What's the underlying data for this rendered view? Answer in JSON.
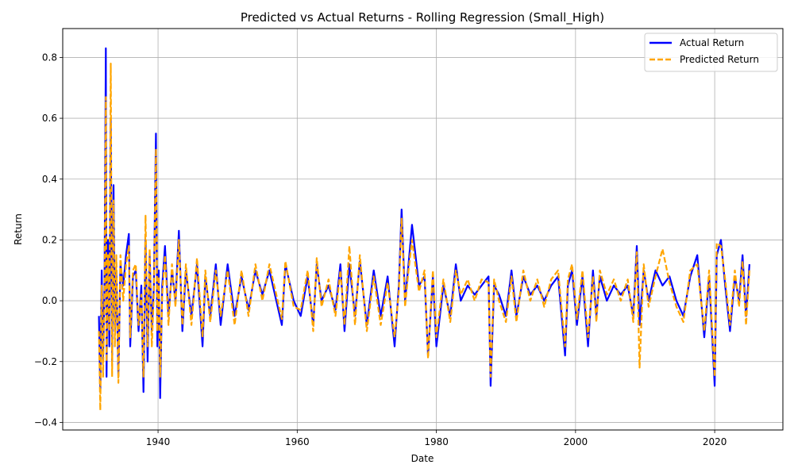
{
  "chart_data": {
    "type": "line",
    "title": "Predicted vs Actual Returns - Rolling Regression (Small_High)",
    "xlabel": "Date",
    "ylabel": "Return",
    "xlim": [
      1926.3,
      2029.8
    ],
    "ylim": [
      -0.425,
      0.895
    ],
    "x_ticks": [
      1940,
      1960,
      1980,
      2000,
      2020
    ],
    "y_ticks": [
      -0.4,
      -0.2,
      0.0,
      0.2,
      0.4,
      0.6,
      0.8
    ],
    "y_tick_labels": [
      "−0.4",
      "−0.2",
      "0.0",
      "0.2",
      "0.4",
      "0.6",
      "0.8"
    ],
    "grid": true,
    "legend_position": "top-right",
    "series": [
      {
        "name": "Actual Return",
        "color": "#0000ff",
        "style": "solid",
        "x": [
          1931.5,
          1931.7,
          1931.9,
          1932.1,
          1932.3,
          1932.5,
          1932.6,
          1932.8,
          1933.0,
          1933.2,
          1933.4,
          1933.6,
          1933.8,
          1934.0,
          1934.3,
          1934.6,
          1935.0,
          1935.4,
          1935.8,
          1936.0,
          1936.4,
          1936.8,
          1937.2,
          1937.6,
          1937.9,
          1938.2,
          1938.5,
          1938.8,
          1939.1,
          1939.4,
          1939.7,
          1939.9,
          1940.1,
          1940.3,
          1940.6,
          1941.0,
          1941.5,
          1942.0,
          1942.5,
          1943.0,
          1943.5,
          1944.0,
          1944.8,
          1945.6,
          1946.4,
          1946.8,
          1947.5,
          1948.3,
          1949.0,
          1950.0,
          1951.0,
          1952.0,
          1953.0,
          1954.0,
          1955.0,
          1956.0,
          1957.0,
          1957.8,
          1958.3,
          1959.5,
          1960.5,
          1961.5,
          1962.3,
          1962.8,
          1963.5,
          1964.5,
          1965.5,
          1966.2,
          1966.8,
          1967.5,
          1968.3,
          1969.0,
          1970.0,
          1971.0,
          1972.0,
          1973.0,
          1974.0,
          1974.6,
          1975.0,
          1975.5,
          1976.0,
          1976.5,
          1977.5,
          1978.3,
          1978.8,
          1979.5,
          1980.0,
          1981.0,
          1982.0,
          1982.8,
          1983.5,
          1984.5,
          1985.5,
          1986.5,
          1987.5,
          1987.8,
          1988.3,
          1989.0,
          1990.0,
          1990.8,
          1991.5,
          1992.5,
          1993.5,
          1994.5,
          1995.5,
          1996.5,
          1997.5,
          1998.5,
          1998.9,
          1999.5,
          2000.2,
          2001.0,
          2001.8,
          2002.5,
          2003.0,
          2003.5,
          2004.5,
          2005.5,
          2006.5,
          2007.5,
          2008.3,
          2008.8,
          2009.2,
          2009.8,
          2010.5,
          2011.5,
          2012.5,
          2013.5,
          2014.5,
          2015.5,
          2016.5,
          2017.5,
          2018.5,
          2019.2,
          2020.0,
          2020.3,
          2020.9,
          2021.5,
          2022.2,
          2022.9,
          2023.5,
          2024.0,
          2024.5,
          2025.0
        ],
        "y": [
          -0.05,
          -0.3,
          0.1,
          -0.2,
          0.05,
          0.83,
          -0.25,
          0.2,
          -0.15,
          0.6,
          -0.2,
          0.38,
          -0.1,
          0.1,
          -0.25,
          0.12,
          0.05,
          0.15,
          0.22,
          -0.15,
          0.08,
          0.1,
          -0.1,
          0.05,
          -0.3,
          0.2,
          -0.2,
          0.15,
          -0.1,
          0.05,
          0.55,
          -0.15,
          0.1,
          -0.32,
          0.05,
          0.18,
          -0.05,
          0.1,
          0.0,
          0.23,
          -0.1,
          0.1,
          -0.05,
          0.12,
          -0.15,
          0.08,
          -0.05,
          0.12,
          -0.08,
          0.12,
          -0.05,
          0.08,
          -0.03,
          0.1,
          0.02,
          0.1,
          0.0,
          -0.08,
          0.12,
          0.0,
          -0.05,
          0.08,
          -0.08,
          0.12,
          0.0,
          0.05,
          -0.03,
          0.12,
          -0.1,
          0.12,
          -0.05,
          0.13,
          -0.08,
          0.1,
          -0.05,
          0.08,
          -0.15,
          0.05,
          0.3,
          0.0,
          0.12,
          0.25,
          0.05,
          0.08,
          -0.18,
          0.08,
          -0.15,
          0.05,
          -0.05,
          0.12,
          0.0,
          0.05,
          0.02,
          0.05,
          0.08,
          -0.28,
          0.05,
          0.02,
          -0.05,
          0.1,
          -0.05,
          0.08,
          0.02,
          0.05,
          0.0,
          0.05,
          0.08,
          -0.18,
          0.05,
          0.1,
          -0.08,
          0.08,
          -0.15,
          0.1,
          -0.05,
          0.08,
          0.0,
          0.05,
          0.02,
          0.05,
          -0.05,
          0.18,
          -0.08,
          0.1,
          0.0,
          0.1,
          0.05,
          0.08,
          0.0,
          -0.05,
          0.08,
          0.15,
          -0.12,
          0.08,
          -0.28,
          0.15,
          0.2,
          0.05,
          -0.1,
          0.08,
          0.0,
          0.15,
          -0.05,
          0.12
        ]
      },
      {
        "name": "Predicted Return",
        "color": "#ffa500",
        "style": "dashed",
        "x": [
          1931.5,
          1931.7,
          1931.9,
          1932.1,
          1932.3,
          1932.5,
          1932.6,
          1932.8,
          1933.0,
          1933.2,
          1933.4,
          1933.6,
          1933.8,
          1934.0,
          1934.3,
          1934.6,
          1935.0,
          1935.4,
          1935.8,
          1936.0,
          1936.4,
          1936.8,
          1937.2,
          1937.6,
          1937.9,
          1938.2,
          1938.5,
          1938.8,
          1939.1,
          1939.4,
          1939.7,
          1939.9,
          1940.1,
          1940.3,
          1940.6,
          1941.0,
          1941.5,
          1942.0,
          1942.5,
          1943.0,
          1943.5,
          1944.0,
          1944.8,
          1945.6,
          1946.4,
          1946.8,
          1947.5,
          1948.3,
          1949.0,
          1950.0,
          1951.0,
          1952.0,
          1953.0,
          1954.0,
          1955.0,
          1956.0,
          1957.0,
          1957.8,
          1958.3,
          1959.5,
          1960.5,
          1961.5,
          1962.3,
          1962.8,
          1963.5,
          1964.5,
          1965.5,
          1966.2,
          1966.8,
          1967.5,
          1968.3,
          1969.0,
          1970.0,
          1971.0,
          1972.0,
          1973.0,
          1974.0,
          1974.6,
          1975.0,
          1975.5,
          1976.0,
          1976.5,
          1977.5,
          1978.3,
          1978.8,
          1979.5,
          1980.0,
          1981.0,
          1982.0,
          1982.8,
          1983.5,
          1984.5,
          1985.5,
          1986.5,
          1987.5,
          1987.8,
          1988.3,
          1989.0,
          1990.0,
          1990.8,
          1991.5,
          1992.5,
          1993.5,
          1994.5,
          1995.5,
          1996.5,
          1997.5,
          1998.5,
          1998.9,
          1999.5,
          2000.2,
          2001.0,
          2001.8,
          2002.5,
          2003.0,
          2003.5,
          2004.5,
          2005.5,
          2006.5,
          2007.5,
          2008.3,
          2008.8,
          2009.2,
          2009.8,
          2010.5,
          2011.5,
          2012.5,
          2013.5,
          2014.5,
          2015.5,
          2016.5,
          2017.5,
          2018.5,
          2019.2,
          2020.0,
          2020.3,
          2020.9,
          2021.5,
          2022.2,
          2022.9,
          2023.5,
          2024.0,
          2024.5,
          2025.0
        ],
        "y": [
          -0.1,
          -0.36,
          0.05,
          -0.25,
          0.0,
          0.67,
          -0.2,
          0.15,
          -0.1,
          0.78,
          -0.25,
          0.33,
          -0.15,
          0.15,
          -0.27,
          0.15,
          0.0,
          0.12,
          0.18,
          -0.12,
          0.1,
          0.12,
          -0.08,
          0.02,
          -0.25,
          0.28,
          -0.15,
          0.17,
          -0.15,
          0.02,
          0.5,
          -0.1,
          0.08,
          -0.25,
          0.02,
          0.15,
          -0.08,
          0.12,
          -0.02,
          0.2,
          -0.08,
          0.12,
          -0.08,
          0.14,
          -0.12,
          0.1,
          -0.07,
          0.1,
          -0.05,
          0.1,
          -0.08,
          0.1,
          -0.05,
          0.12,
          0.0,
          0.12,
          0.02,
          -0.06,
          0.13,
          -0.02,
          -0.03,
          0.1,
          -0.1,
          0.14,
          -0.02,
          0.07,
          -0.05,
          0.1,
          -0.08,
          0.18,
          -0.08,
          0.15,
          -0.1,
          0.08,
          -0.08,
          0.06,
          -0.12,
          0.03,
          0.27,
          -0.02,
          0.1,
          0.2,
          0.03,
          0.1,
          -0.19,
          0.1,
          -0.12,
          0.07,
          -0.07,
          0.1,
          0.02,
          0.07,
          0.0,
          0.07,
          0.06,
          -0.25,
          0.07,
          0.0,
          -0.07,
          0.08,
          -0.07,
          0.1,
          0.0,
          0.07,
          -0.02,
          0.07,
          0.1,
          -0.15,
          0.07,
          0.12,
          -0.06,
          0.1,
          -0.12,
          0.08,
          -0.07,
          0.1,
          0.02,
          0.07,
          0.0,
          0.07,
          -0.07,
          0.16,
          -0.22,
          0.12,
          -0.02,
          0.08,
          0.17,
          0.06,
          -0.02,
          -0.07,
          0.1,
          0.12,
          -0.1,
          0.1,
          -0.25,
          0.19,
          0.18,
          0.07,
          -0.08,
          0.1,
          -0.02,
          0.13,
          -0.08,
          0.1
        ]
      }
    ]
  }
}
